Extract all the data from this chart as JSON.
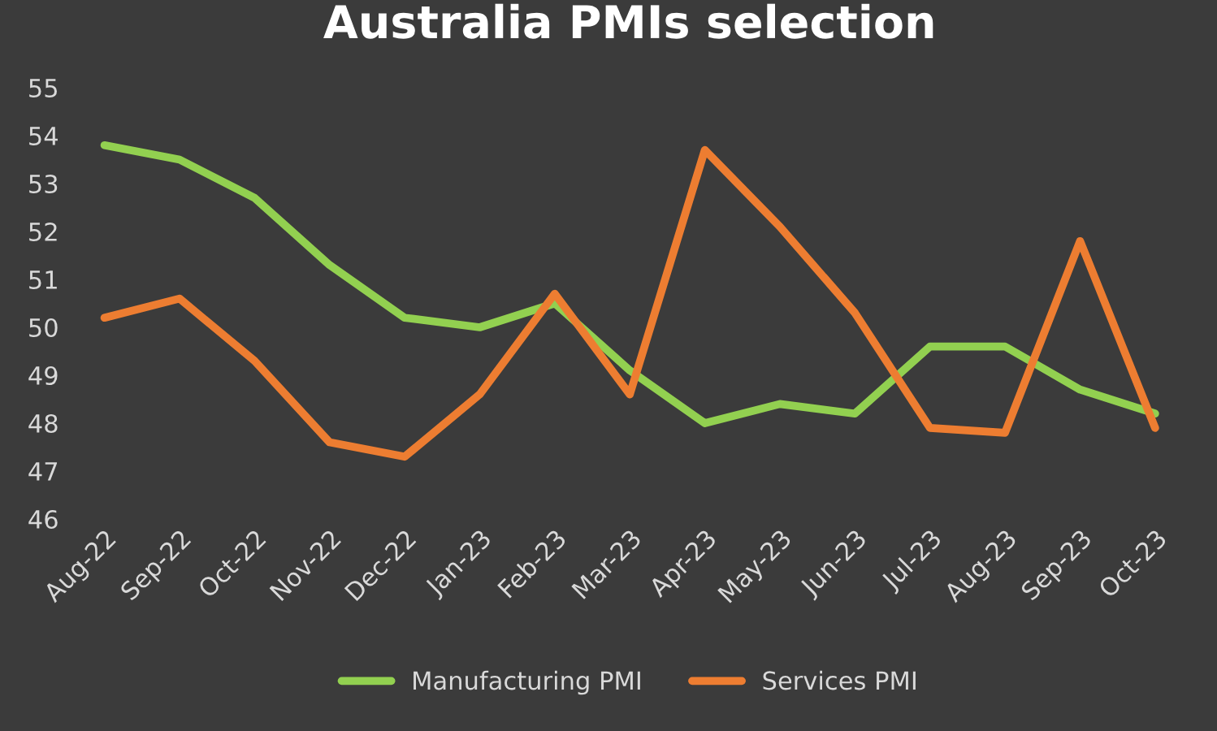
{
  "chart_data": {
    "type": "line",
    "title": "Australia PMIs selection",
    "categories": [
      "Aug-22",
      "Sep-22",
      "Oct-22",
      "Nov-22",
      "Dec-22",
      "Jan-23",
      "Feb-23",
      "Mar-23",
      "Apr-23",
      "May-23",
      "Jun-23",
      "Jul-23",
      "Aug-23",
      "Sep-23",
      "Oct-23"
    ],
    "series": [
      {
        "name": "Manufacturing PMI",
        "color": "#92d050",
        "values": [
          53.8,
          53.5,
          52.7,
          51.3,
          50.2,
          50.0,
          50.5,
          49.1,
          48.0,
          48.4,
          48.2,
          49.6,
          49.6,
          48.7,
          48.2
        ]
      },
      {
        "name": "Services PMI",
        "color": "#ed7d31",
        "values": [
          50.2,
          50.6,
          49.3,
          47.6,
          47.3,
          48.6,
          50.7,
          48.6,
          53.7,
          52.1,
          50.3,
          47.9,
          47.8,
          51.8,
          47.9
        ]
      }
    ],
    "ylim": [
      46,
      55
    ],
    "yticks": [
      46,
      47,
      48,
      49,
      50,
      51,
      52,
      53,
      54,
      55
    ],
    "grid": false,
    "legend": "bottom",
    "marker": "none",
    "line_style": "solid"
  }
}
